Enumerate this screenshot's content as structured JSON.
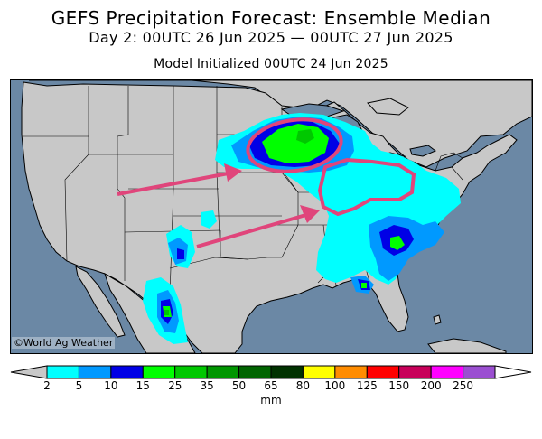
{
  "header": {
    "title": "GEFS Precipitation Forecast: Ensemble Median",
    "subtitle": "Day 2: 00UTC 26 Jun 2025 — 00UTC 27 Jun 2025",
    "init": "Model Initialized 00UTC 24 Jun 2025"
  },
  "map": {
    "credit": "©World Ag Weather",
    "ocean_color": "#6b88a5",
    "land_color": "#c8c8c8",
    "annotation_color": "#e0457b"
  },
  "legend": {
    "units": "mm",
    "ticks": [
      "2",
      "5",
      "10",
      "15",
      "25",
      "35",
      "50",
      "65",
      "80",
      "100",
      "125",
      "150",
      "200",
      "250"
    ],
    "colors": [
      "#00ffff",
      "#0099ff",
      "#0000e6",
      "#00ff00",
      "#00c800",
      "#009600",
      "#006400",
      "#003200",
      "#ffff00",
      "#ff8c00",
      "#ff0000",
      "#c8005a",
      "#ff00ff",
      "#9b4fd1"
    ],
    "under_color": "#c8c8c8",
    "over_color": "#ffffff"
  }
}
